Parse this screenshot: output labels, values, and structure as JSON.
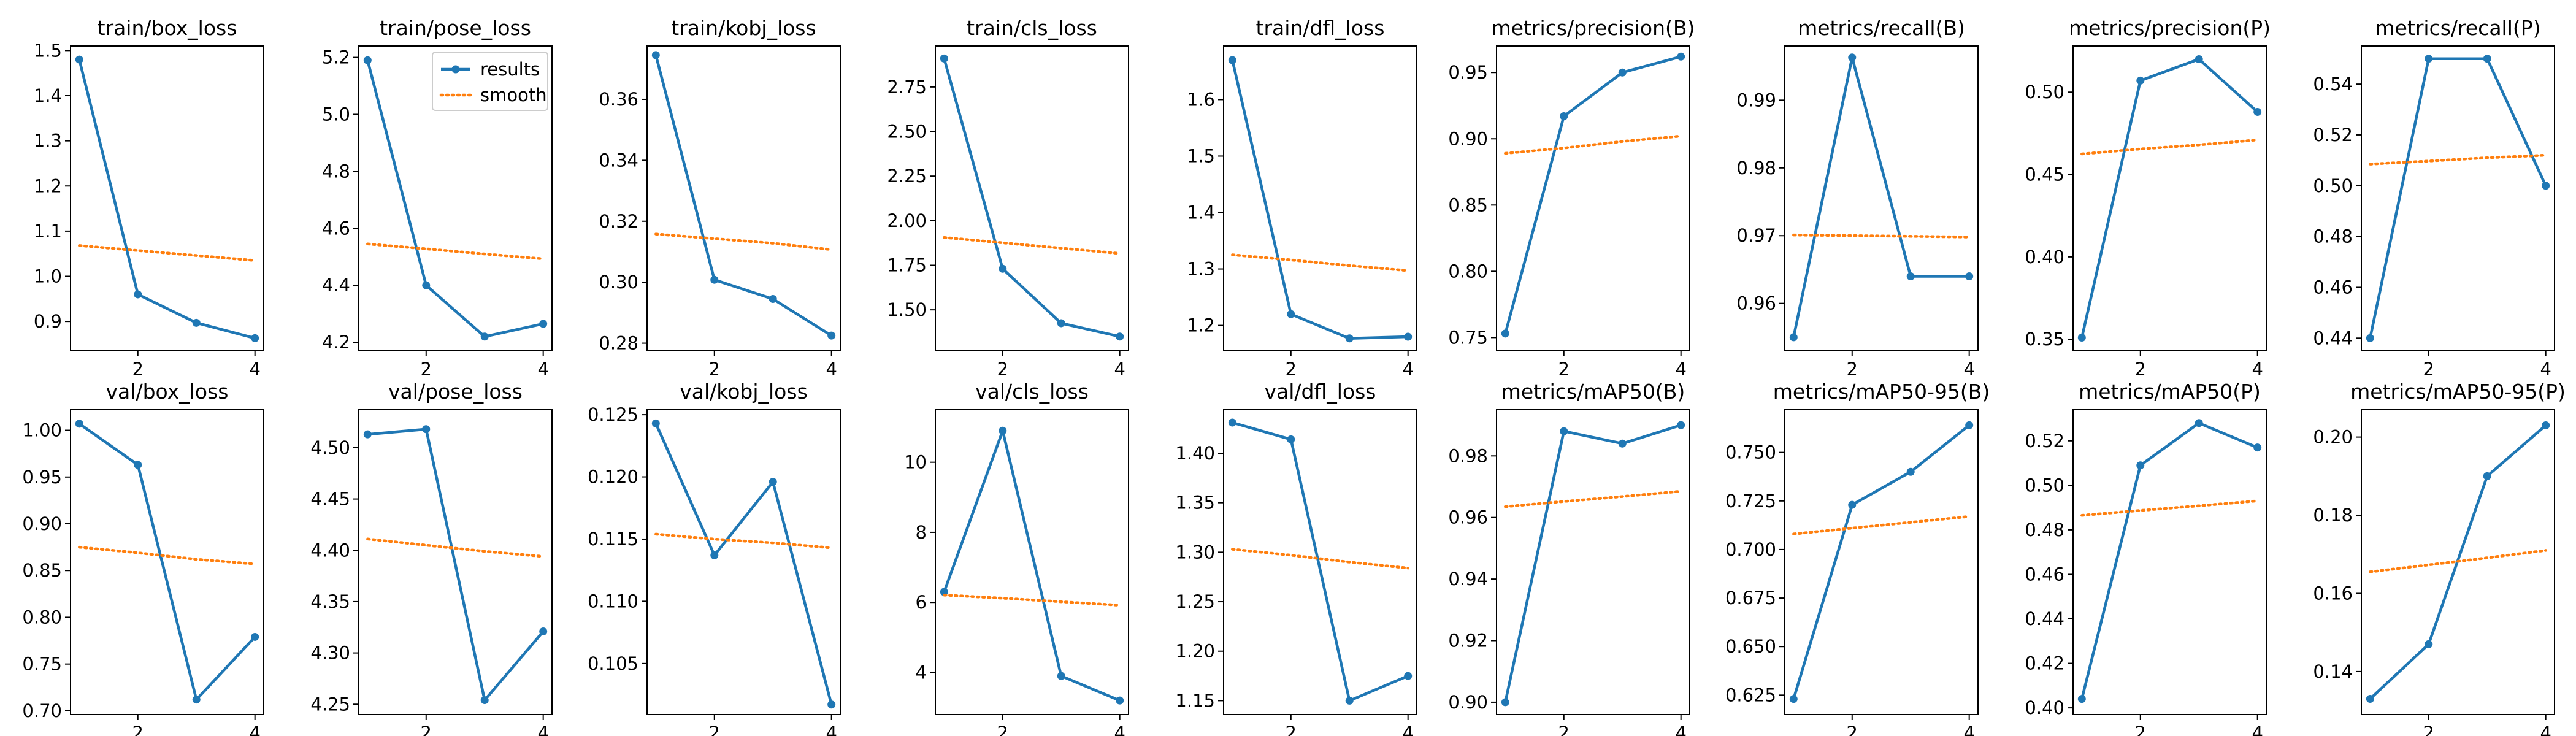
{
  "colors": {
    "results": "#1f77b4",
    "smooth": "#ff7f0e",
    "axis": "#000000"
  },
  "legend": {
    "placement": "upper-right",
    "panel": 1,
    "entries": [
      "results",
      "smooth"
    ]
  },
  "chart_data": [
    {
      "type": "line",
      "title": "train/box_loss",
      "x": [
        1,
        2,
        3,
        4
      ],
      "xticks": [
        2,
        4
      ],
      "yticks": [
        0.9,
        1.0,
        1.1,
        1.2,
        1.3,
        1.4,
        1.5
      ],
      "ylim": [
        0.835,
        1.51
      ],
      "series": [
        {
          "name": "results",
          "values": [
            1.48,
            0.96,
            0.897,
            0.863
          ]
        },
        {
          "name": "smooth",
          "values": [
            1.068,
            1.057,
            1.046,
            1.035
          ]
        }
      ]
    },
    {
      "type": "line",
      "title": "train/pose_loss",
      "x": [
        1,
        2,
        3,
        4
      ],
      "xticks": [
        2,
        4
      ],
      "yticks": [
        4.2,
        4.4,
        4.6,
        4.8,
        5.0,
        5.2
      ],
      "ylim": [
        4.17,
        5.24
      ],
      "series": [
        {
          "name": "results",
          "values": [
            5.19,
            4.4,
            4.22,
            4.265
          ]
        },
        {
          "name": "smooth",
          "values": [
            4.545,
            4.528,
            4.51,
            4.493
          ]
        }
      ]
    },
    {
      "type": "line",
      "title": "train/kobj_loss",
      "x": [
        1,
        2,
        3,
        4
      ],
      "xticks": [
        2,
        4
      ],
      "yticks": [
        0.28,
        0.3,
        0.32,
        0.34,
        0.36
      ],
      "ylim": [
        0.2775,
        0.3775
      ],
      "series": [
        {
          "name": "results",
          "values": [
            0.3745,
            0.3008,
            0.2945,
            0.2825
          ]
        },
        {
          "name": "smooth",
          "values": [
            0.3158,
            0.3143,
            0.3128,
            0.3107
          ]
        }
      ]
    },
    {
      "type": "line",
      "title": "train/cls_loss",
      "x": [
        1,
        2,
        3,
        4
      ],
      "xticks": [
        2,
        4
      ],
      "yticks": [
        1.5,
        1.75,
        2.0,
        2.25,
        2.5,
        2.75
      ],
      "ylim": [
        1.27,
        2.98
      ],
      "series": [
        {
          "name": "results",
          "values": [
            2.91,
            1.73,
            1.425,
            1.35
          ]
        },
        {
          "name": "smooth",
          "values": [
            1.906,
            1.876,
            1.846,
            1.816
          ]
        }
      ]
    },
    {
      "type": "line",
      "title": "train/dfl_loss",
      "x": [
        1,
        2,
        3,
        4
      ],
      "xticks": [
        2,
        4
      ],
      "yticks": [
        1.2,
        1.3,
        1.4,
        1.5,
        1.6
      ],
      "ylim": [
        1.155,
        1.695
      ],
      "series": [
        {
          "name": "results",
          "values": [
            1.67,
            1.22,
            1.177,
            1.18
          ]
        },
        {
          "name": "smooth",
          "values": [
            1.325,
            1.316,
            1.306,
            1.297
          ]
        }
      ]
    },
    {
      "type": "line",
      "title": "metrics/precision(B)",
      "x": [
        1,
        2,
        3,
        4
      ],
      "xticks": [
        2,
        4
      ],
      "yticks": [
        0.75,
        0.8,
        0.85,
        0.9,
        0.95
      ],
      "ylim": [
        0.74,
        0.97
      ],
      "series": [
        {
          "name": "results",
          "values": [
            0.753,
            0.917,
            0.95,
            0.962
          ]
        },
        {
          "name": "smooth",
          "values": [
            0.889,
            0.893,
            0.898,
            0.902
          ]
        }
      ]
    },
    {
      "type": "line",
      "title": "metrics/recall(B)",
      "x": [
        1,
        2,
        3,
        4
      ],
      "xticks": [
        2,
        4
      ],
      "yticks": [
        0.96,
        0.97,
        0.98,
        0.99
      ],
      "ylim": [
        0.953,
        0.998
      ],
      "series": [
        {
          "name": "results",
          "values": [
            0.955,
            0.9963,
            0.964,
            0.964
          ]
        },
        {
          "name": "smooth",
          "values": [
            0.9701,
            0.97,
            0.9699,
            0.9698
          ]
        }
      ]
    },
    {
      "type": "line",
      "title": "metrics/precision(P)",
      "x": [
        1,
        2,
        3,
        4
      ],
      "xticks": [
        2,
        4
      ],
      "yticks": [
        0.35,
        0.4,
        0.45,
        0.5
      ],
      "ylim": [
        0.343,
        0.528
      ],
      "series": [
        {
          "name": "results",
          "values": [
            0.351,
            0.507,
            0.52,
            0.488
          ]
        },
        {
          "name": "smooth",
          "values": [
            0.4625,
            0.4655,
            0.468,
            0.471
          ]
        }
      ]
    },
    {
      "type": "line",
      "title": "metrics/recall(P)",
      "x": [
        1,
        2,
        3,
        4
      ],
      "xticks": [
        2,
        4
      ],
      "yticks": [
        0.44,
        0.46,
        0.48,
        0.5,
        0.52,
        0.54
      ],
      "ylim": [
        0.435,
        0.555
      ],
      "series": [
        {
          "name": "results",
          "values": [
            0.44,
            0.55,
            0.55,
            0.5
          ]
        },
        {
          "name": "smooth",
          "values": [
            0.5085,
            0.5097,
            0.511,
            0.512
          ]
        }
      ]
    },
    {
      "type": "line",
      "title": "val/box_loss",
      "x": [
        1,
        2,
        3,
        4
      ],
      "xticks": [
        2,
        4
      ],
      "yticks": [
        0.7,
        0.75,
        0.8,
        0.85,
        0.9,
        0.95,
        1.0
      ],
      "ylim": [
        0.696,
        1.022
      ],
      "series": [
        {
          "name": "results",
          "values": [
            1.007,
            0.963,
            0.712,
            0.779
          ]
        },
        {
          "name": "smooth",
          "values": [
            0.875,
            0.869,
            0.862,
            0.857
          ]
        }
      ]
    },
    {
      "type": "line",
      "title": "val/pose_loss",
      "x": [
        1,
        2,
        3,
        4
      ],
      "xticks": [
        2,
        4
      ],
      "yticks": [
        4.25,
        4.3,
        4.35,
        4.4,
        4.45,
        4.5
      ],
      "ylim": [
        4.24,
        4.537
      ],
      "series": [
        {
          "name": "results",
          "values": [
            4.513,
            4.518,
            4.254,
            4.321
          ]
        },
        {
          "name": "smooth",
          "values": [
            4.411,
            4.405,
            4.399,
            4.394
          ]
        }
      ]
    },
    {
      "type": "line",
      "title": "val/kobj_loss",
      "x": [
        1,
        2,
        3,
        4
      ],
      "xticks": [
        2,
        4
      ],
      "yticks": [
        0.105,
        0.11,
        0.115,
        0.12,
        0.125
      ],
      "ylim": [
        0.1009,
        0.1254
      ],
      "series": [
        {
          "name": "results",
          "values": [
            0.1243,
            0.1137,
            0.1196,
            0.1017
          ]
        },
        {
          "name": "smooth",
          "values": [
            0.1154,
            0.115,
            0.1147,
            0.1143
          ]
        }
      ]
    },
    {
      "type": "line",
      "title": "val/cls_loss",
      "x": [
        1,
        2,
        3,
        4
      ],
      "xticks": [
        2,
        4
      ],
      "yticks": [
        4,
        6,
        8,
        10
      ],
      "ylim": [
        2.8,
        11.5
      ],
      "series": [
        {
          "name": "results",
          "values": [
            6.3,
            10.9,
            3.9,
            3.2
          ]
        },
        {
          "name": "smooth",
          "values": [
            6.21,
            6.12,
            6.02,
            5.92
          ]
        }
      ]
    },
    {
      "type": "line",
      "title": "val/dfl_loss",
      "x": [
        1,
        2,
        3,
        4
      ],
      "xticks": [
        2,
        4
      ],
      "yticks": [
        1.15,
        1.2,
        1.25,
        1.3,
        1.35,
        1.4
      ],
      "ylim": [
        1.136,
        1.444
      ],
      "series": [
        {
          "name": "results",
          "values": [
            1.431,
            1.414,
            1.15,
            1.175
          ]
        },
        {
          "name": "smooth",
          "values": [
            1.303,
            1.297,
            1.29,
            1.284
          ]
        }
      ]
    },
    {
      "type": "line",
      "title": "metrics/mAP50(B)",
      "x": [
        1,
        2,
        3,
        4
      ],
      "xticks": [
        2,
        4
      ],
      "yticks": [
        0.9,
        0.92,
        0.94,
        0.96,
        0.98
      ],
      "ylim": [
        0.896,
        0.995
      ],
      "series": [
        {
          "name": "results",
          "values": [
            0.9,
            0.988,
            0.984,
            0.99
          ]
        },
        {
          "name": "smooth",
          "values": [
            0.9635,
            0.9652,
            0.9668,
            0.9685
          ]
        }
      ]
    },
    {
      "type": "line",
      "title": "metrics/mAP50-95(B)",
      "x": [
        1,
        2,
        3,
        4
      ],
      "xticks": [
        2,
        4
      ],
      "yticks": [
        0.625,
        0.65,
        0.675,
        0.7,
        0.725,
        0.75
      ],
      "ylim": [
        0.615,
        0.772
      ],
      "series": [
        {
          "name": "results",
          "values": [
            0.623,
            0.723,
            0.74,
            0.764
          ]
        },
        {
          "name": "smooth",
          "values": [
            0.708,
            0.711,
            0.714,
            0.717
          ]
        }
      ]
    },
    {
      "type": "line",
      "title": "metrics/mAP50(P)",
      "x": [
        1,
        2,
        3,
        4
      ],
      "xticks": [
        2,
        4
      ],
      "yticks": [
        0.4,
        0.42,
        0.44,
        0.46,
        0.48,
        0.5,
        0.52
      ],
      "ylim": [
        0.397,
        0.534
      ],
      "series": [
        {
          "name": "results",
          "values": [
            0.404,
            0.509,
            0.528,
            0.517
          ]
        },
        {
          "name": "smooth",
          "values": [
            0.4865,
            0.4887,
            0.4908,
            0.493
          ]
        }
      ]
    },
    {
      "type": "line",
      "title": "metrics/mAP50-95(P)",
      "x": [
        1,
        2,
        3,
        4
      ],
      "xticks": [
        2,
        4
      ],
      "yticks": [
        0.14,
        0.16,
        0.18,
        0.2
      ],
      "ylim": [
        0.129,
        0.207
      ],
      "series": [
        {
          "name": "results",
          "values": [
            0.133,
            0.147,
            0.19,
            0.203
          ]
        },
        {
          "name": "smooth",
          "values": [
            0.1655,
            0.1673,
            0.1691,
            0.171
          ]
        }
      ]
    }
  ]
}
